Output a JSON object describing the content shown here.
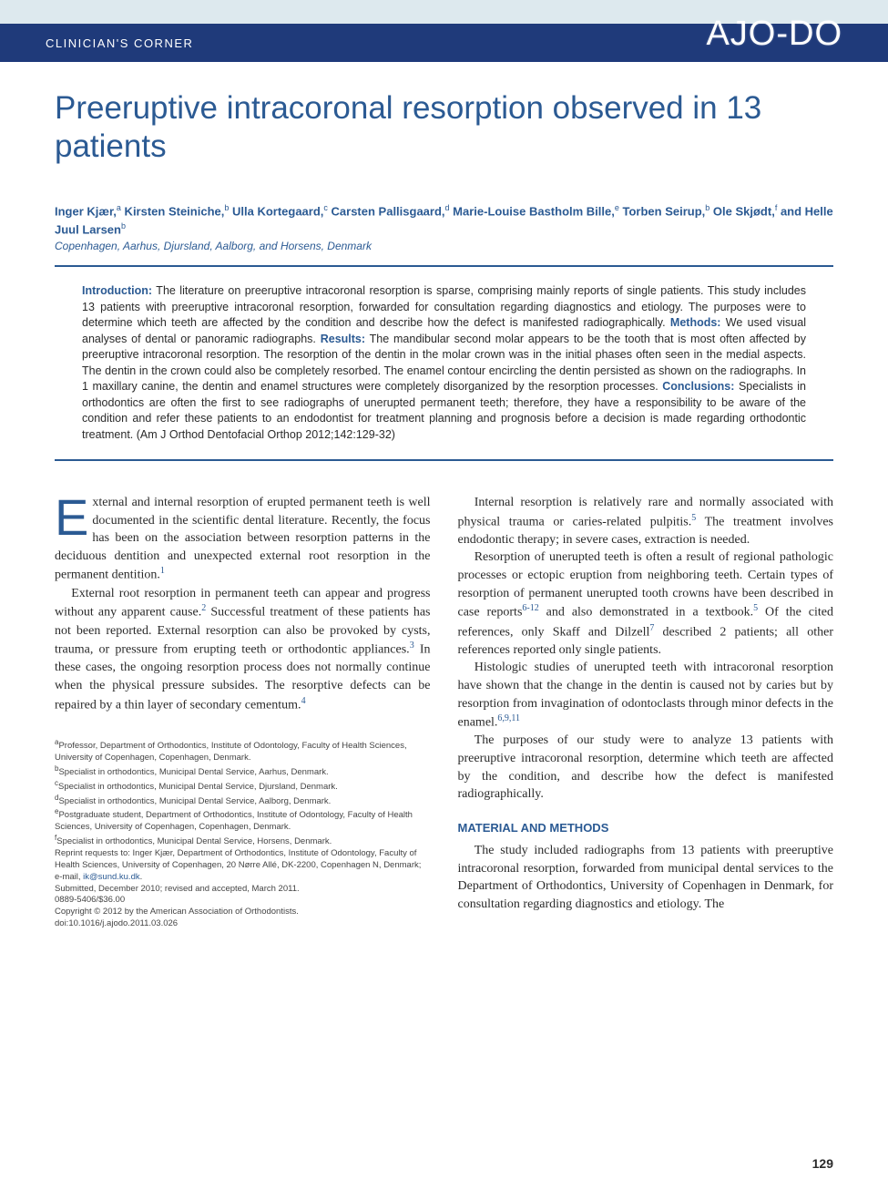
{
  "header": {
    "section_label": "CLINICIAN'S CORNER",
    "journal_logo": "AJO-DO"
  },
  "title": "Preeruptive intracoronal resorption observed in 13 patients",
  "authors_html": "Inger Kjær,<sup>a</sup> Kirsten Steiniche,<sup>b</sup> Ulla Kortegaard,<sup>c</sup> Carsten Pallisgaard,<sup>d</sup> Marie-Louise Bastholm Bille,<sup>e</sup> Torben Seirup,<sup>b</sup> Ole Skjødt,<sup>f</sup> and Helle Juul Larsen<sup>b</sup>",
  "locations": "Copenhagen, Aarhus, Djursland, Aalborg, and Horsens, Denmark",
  "abstract": {
    "intro_label": "Introduction:",
    "intro_text": " The literature on preeruptive intracoronal resorption is sparse, comprising mainly reports of single patients. This study includes 13 patients with preeruptive intracoronal resorption, forwarded for consultation regarding diagnostics and etiology. The purposes were to determine which teeth are affected by the condition and describe how the defect is manifested radiographically. ",
    "methods_label": "Methods:",
    "methods_text": " We used visual analyses of dental or panoramic radiographs. ",
    "results_label": "Results:",
    "results_text": " The mandibular second molar appears to be the tooth that is most often affected by preeruptive intracoronal resorption. The resorption of the dentin in the molar crown was in the initial phases often seen in the medial aspects. The dentin in the crown could also be completely resorbed. The enamel contour encircling the dentin persisted as shown on the radiographs. In 1 maxillary canine, the dentin and enamel structures were completely disorganized by the resorption processes. ",
    "conclusions_label": "Conclusions:",
    "conclusions_text": " Specialists in orthodontics are often the first to see radiographs of unerupted permanent teeth; therefore, they have a responsibility to be aware of the condition and refer these patients to an endodontist for treatment planning and prognosis before a decision is made regarding orthodontic treatment. (Am J Orthod Dentofacial Orthop 2012;142:129-32)"
  },
  "body": {
    "col1": {
      "p1_dropcap": "E",
      "p1": "xternal and internal resorption of erupted permanent teeth is well documented in the scientific dental literature. Recently, the focus has been on the association between resorption patterns in the deciduous dentition and unexpected external root resorption in the permanent dentition.",
      "p1_ref": "1",
      "p2a": "External root resorption in permanent teeth can appear and progress without any apparent cause.",
      "p2_ref1": "2",
      "p2b": " Successful treatment of these patients has not been reported. External resorption can also be provoked by cysts, trauma, or pressure from erupting teeth or orthodontic appliances.",
      "p2_ref2": "3",
      "p2c": " In these cases, the ongoing resorption process does not normally continue when the physical pressure subsides. The resorptive defects can be repaired by a thin layer of secondary cementum.",
      "p2_ref3": "4"
    },
    "col2": {
      "p1a": "Internal resorption is relatively rare and normally associated with physical trauma or caries-related pulpitis.",
      "p1_ref": "5",
      "p1b": " The treatment involves endodontic therapy; in severe cases, extraction is needed.",
      "p2a": "Resorption of unerupted teeth is often a result of regional pathologic processes or ectopic eruption from neighboring teeth. Certain types of resorption of permanent unerupted tooth crowns have been described in case reports",
      "p2_ref1": "6-12",
      "p2b": " and also demonstrated in a textbook.",
      "p2_ref2": "5",
      "p2c": " Of the cited references, only Skaff and Dilzell",
      "p2_ref3": "7",
      "p2d": " described 2 patients; all other references reported only single patients.",
      "p3a": "Histologic studies of unerupted teeth with intracoronal resorption have shown that the change in the dentin is caused not by caries but by resorption from invagination of odontoclasts through minor defects in the enamel.",
      "p3_ref": "6,9,11",
      "p4": "The purposes of our study were to analyze 13 patients with preeruptive intracoronal resorption, determine which teeth are affected by the condition, and describe how the defect is manifested radiographically.",
      "methods_heading": "MATERIAL AND METHODS",
      "p5": "The study included radiographs from 13 patients with preeruptive intracoronal resorption, forwarded from municipal dental services to the Department of Orthodontics, University of Copenhagen in Denmark, for consultation regarding diagnostics and etiology. The"
    }
  },
  "affiliations": {
    "a": "Professor, Department of Orthodontics, Institute of Odontology, Faculty of Health Sciences, University of Copenhagen, Copenhagen, Denmark.",
    "b": "Specialist in orthodontics, Municipal Dental Service, Aarhus, Denmark.",
    "c": "Specialist in orthodontics, Municipal Dental Service, Djursland, Denmark.",
    "d": "Specialist in orthodontics, Municipal Dental Service, Aalborg, Denmark.",
    "e": "Postgraduate student, Department of Orthodontics, Institute of Odontology, Faculty of Health Sciences, University of Copenhagen, Copenhagen, Denmark.",
    "f": "Specialist in orthodontics, Municipal Dental Service, Horsens, Denmark.",
    "reprint": "Reprint requests to: Inger Kjær, Department of Orthodontics, Institute of Odontology, Faculty of Health Sciences, University of Copenhagen, 20 Nørre Allé, DK-2200, Copenhagen N, Denmark; e-mail, ",
    "reprint_email": "ik@sund.ku.dk",
    "submitted": "Submitted, December 2010; revised and accepted, March 2011.",
    "issn": "0889-5406/$36.00",
    "copyright": "Copyright © 2012 by the American Association of Orthodontists.",
    "doi": "doi:10.1016/j.ajodo.2011.03.026"
  },
  "page_number": "129",
  "colors": {
    "brand_blue": "#2b5a93",
    "header_blue": "#1f3a7a",
    "light_blue": "#dde9ee",
    "text": "#2a2a2a",
    "background": "#ffffff"
  }
}
